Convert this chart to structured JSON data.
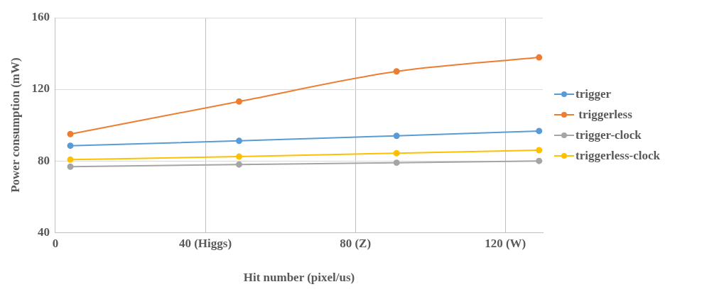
{
  "chart_data": {
    "type": "line",
    "xlabel": "Hit number (pixel/us)",
    "ylabel": "Power consumption (mW)",
    "x": [
      4,
      49,
      91,
      129
    ],
    "series": [
      {
        "name": "trigger",
        "color": "#5b9bd5",
        "values": [
          88.5,
          91.2,
          94,
          96.7
        ]
      },
      {
        "name": " triggerless",
        "color": "#ed7d31",
        "values": [
          95,
          113.2,
          130,
          137.8
        ]
      },
      {
        "name": "trigger-clock",
        "color": "#a5a5a5",
        "values": [
          76.8,
          78,
          79,
          80
        ]
      },
      {
        "name": "triggerless-clock",
        "color": "#ffc000",
        "values": [
          80.7,
          82.4,
          84.3,
          86
        ]
      }
    ],
    "xlim": [
      0,
      130
    ],
    "xticks": [
      0,
      {
        "value": 40,
        "label": "40 (Higgs)"
      },
      {
        "value": 80,
        "label": "80 (Z)"
      },
      {
        "value": 120,
        "label": "120 (W)"
      }
    ],
    "ylim": [
      40,
      160
    ],
    "yticks": [
      40,
      80,
      120,
      160
    ],
    "grid": true,
    "legend": "right",
    "marker": "circle",
    "line_style": "solid"
  }
}
